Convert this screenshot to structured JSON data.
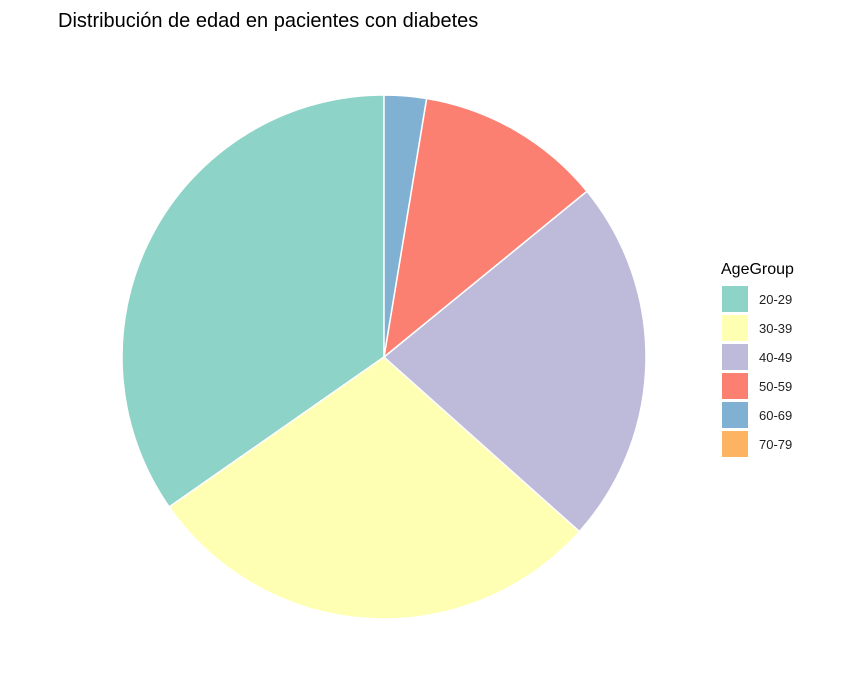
{
  "chart_data": {
    "type": "pie",
    "title": "Distribución de edad en pacientes con diabetes",
    "legend": {
      "title": "AgeGroup",
      "position": "right"
    },
    "start_angle_deg": 0,
    "direction": "counterclockwise",
    "slices": [
      {
        "label": "20-29",
        "value": 34.7,
        "color": "#8dd3c7"
      },
      {
        "label": "30-39",
        "value": 28.7,
        "color": "#ffffb3"
      },
      {
        "label": "40-49",
        "value": 22.5,
        "color": "#bebada"
      },
      {
        "label": "50-59",
        "value": 11.5,
        "color": "#fb8072"
      },
      {
        "label": "60-69",
        "value": 2.6,
        "color": "#80b1d3"
      },
      {
        "label": "70-79",
        "value": 0.0,
        "color": "#fdb462"
      }
    ]
  }
}
